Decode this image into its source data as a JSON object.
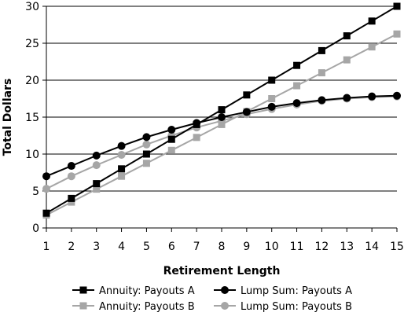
{
  "chart_data": {
    "type": "line",
    "xlabel": "Retirement Length",
    "ylabel": "Total Dollars",
    "x": [
      1,
      2,
      3,
      4,
      5,
      6,
      7,
      8,
      9,
      10,
      11,
      12,
      13,
      14,
      15
    ],
    "xlim": [
      1,
      15
    ],
    "ylim": [
      0,
      30
    ],
    "yticks": [
      0,
      5,
      10,
      15,
      20,
      25,
      30
    ],
    "grid": "horizontal",
    "legend_position": "bottom",
    "series": [
      {
        "name": "Annuity: Payouts A",
        "color": "#000000",
        "marker": "square",
        "values": [
          2,
          4,
          6,
          8,
          10,
          12,
          14,
          16,
          18,
          20,
          22,
          24,
          26,
          28,
          30
        ]
      },
      {
        "name": "Annuity: Payouts B",
        "color": "#a6a6a6",
        "marker": "square",
        "values": [
          1.75,
          3.5,
          5.25,
          7,
          8.75,
          10.5,
          12.25,
          14,
          15.75,
          17.5,
          19.25,
          21,
          22.75,
          24.5,
          26.25
        ]
      },
      {
        "name": "Lump Sum: Payouts A",
        "color": "#000000",
        "marker": "circle",
        "values": [
          7,
          8.4,
          9.8,
          11.1,
          12.3,
          13.3,
          14.2,
          15,
          15.7,
          16.4,
          16.9,
          17.3,
          17.6,
          17.8,
          17.9
        ]
      },
      {
        "name": "Lump Sum: Payouts B",
        "color": "#a6a6a6",
        "marker": "circle",
        "values": [
          5.3,
          7,
          8.5,
          9.9,
          11.3,
          12.5,
          13.6,
          14.5,
          15.4,
          16.1,
          16.7,
          17.2,
          17.5,
          17.7,
          17.8
        ]
      }
    ]
  }
}
